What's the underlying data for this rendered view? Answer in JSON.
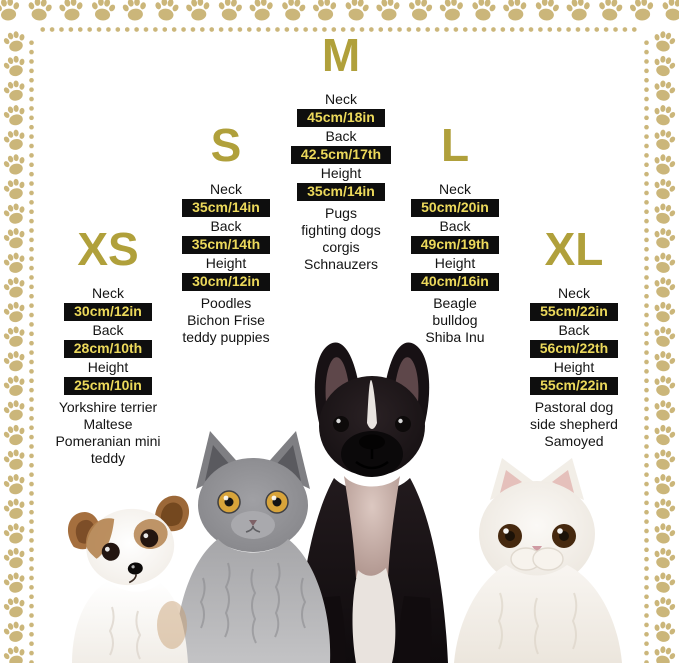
{
  "colors": {
    "accent_title": "#b0a03b",
    "paw": "#cbb67a",
    "bar_bg": "#0e0e0e",
    "bar_text": "#ecd95b",
    "text": "#141414",
    "background": "#ffffff"
  },
  "sizes": [
    {
      "label": "XS",
      "neck_label": "Neck",
      "neck_value": "30cm/12in",
      "back_label": "Back",
      "back_value": "28cm/10th",
      "height_label": "Height",
      "height_value": "25cm/10in",
      "breeds": [
        "Yorkshire terrier",
        "Maltese",
        "Pomeranian mini",
        "teddy"
      ]
    },
    {
      "label": "S",
      "neck_label": "Neck",
      "neck_value": "35cm/14in",
      "back_label": "Back",
      "back_value": "35cm/14th",
      "height_label": "Height",
      "height_value": "30cm/12in",
      "breeds": [
        "Poodles",
        "Bichon Frise",
        "teddy puppies"
      ]
    },
    {
      "label": "M",
      "neck_label": "Neck",
      "neck_value": "45cm/18in",
      "back_label": "Back",
      "back_value": "42.5cm/17th",
      "height_label": "Height",
      "height_value": "35cm/14in",
      "breeds": [
        "Pugs",
        "fighting dogs",
        "corgis",
        "Schnauzers"
      ]
    },
    {
      "label": "L",
      "neck_label": "Neck",
      "neck_value": "50cm/20in",
      "back_label": "Back",
      "back_value": "49cm/19th",
      "height_label": "Height",
      "height_value": "40cm/16in",
      "breeds": [
        "Beagle",
        "bulldog",
        "Shiba Inu"
      ]
    },
    {
      "label": "XL",
      "neck_label": "Neck",
      "neck_value": "55cm/22in",
      "back_label": "Back",
      "back_value": "56cm/22th",
      "height_label": "Height",
      "height_value": "55cm/22in",
      "breeds": [
        "Pastoral dog",
        "side shepherd",
        "Samoyed"
      ]
    }
  ],
  "animals": [
    "chihuahua-puppy",
    "grey-british-shorthair-cat",
    "french-bulldog",
    "white-persian-cat"
  ],
  "border": {
    "paw_icon": "paw-icon",
    "style": "paw prints outside, dotted line inside"
  }
}
